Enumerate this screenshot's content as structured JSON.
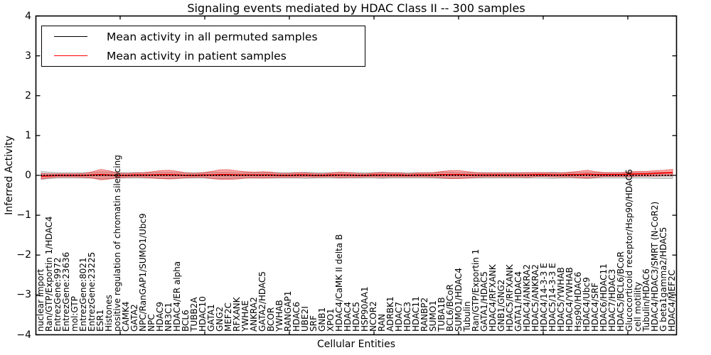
{
  "chart_data": {
    "type": "line",
    "title": "Signaling events mediated by HDAC Class II -- 300 samples",
    "xlabel": "Cellular Entities",
    "ylabel": "Inferred Activity",
    "ylim": [
      -4,
      4
    ],
    "yticks": [
      "4",
      "3",
      "2",
      "1",
      "0",
      "−1",
      "−2",
      "−3",
      "−4"
    ],
    "grid": false,
    "legend_position": "upper left",
    "categories": [
      "nuclear import",
      "Ran/GTP/Exportin 1/HDAC4",
      "EntrezGene:9972",
      "EntrezGene:23636",
      "mol:GTP",
      "EntrezGene:8021",
      "EntrezGene:23225",
      "ESR1",
      "Histones",
      "positive regulation of chromatin silencing",
      "CAMK4",
      "GATA2",
      "NPC/RanGAP1/SUMO1/Ubc9",
      "NPC",
      "HDAC9",
      "NR3C1",
      "HDAC4/ER alpha",
      "BCL6",
      "TUBB2A",
      "HDAC10",
      "GATA1",
      "GNG2",
      "MEF2C",
      "RFXANK",
      "YWHAE",
      "ANKRA2",
      "GATA2/HDAC5",
      "BCOR",
      "YWHAB",
      "RANGAP1",
      "HDAC6",
      "UBE2I",
      "SRF",
      "GNB1",
      "XPO1",
      "HDAC4/CaMK II delta B",
      "HDAC4",
      "HDAC5",
      "HSP90AA1",
      "NCOR2",
      "RAN",
      "ADRBK1",
      "HDAC7",
      "HDAC3",
      "HDAC11",
      "RANBP2",
      "SUMO1",
      "TUBA1B",
      "BCL6/BCoR",
      "SUMO1/HDAC4",
      "Tubulin",
      "Ran/GTP/Exportin 1",
      "GATA1/HDAC5",
      "HDAC4/RFXANK",
      "GNB1/GNG2",
      "HDAC5/RFXANK",
      "GATA1/HDAC4",
      "HDAC4/ANKRA2",
      "HDAC5/ANKRA2",
      "HDAC4/14-3-3 E",
      "HDAC5/14-3-3 E",
      "HDAC5/YWHAB",
      "HDAC4/YWHAB",
      "Hsp90/HDAC6",
      "HDAC4/Ubc9",
      "HDAC4/SRF",
      "HDAC6/HDAC11",
      "HDAC7/HDAC3",
      "HDAC5/BCL6/BCoR",
      "Glucocorticoid receptor/Hsp90/HDAC6",
      "cell motility",
      "Tubulin/HDAC6",
      "HDAC4/HDAC3/SMRT (N-CoR2)",
      "G beta1gamma2/HDAC5",
      "HDAC4/MEF2C"
    ],
    "series": [
      {
        "name": "Mean activity in all permuted samples",
        "color": "#000000",
        "line_style": "dotted",
        "values": [
          0,
          0,
          0,
          0,
          0,
          0,
          0,
          0,
          0,
          0,
          0,
          0,
          0,
          0,
          0,
          0,
          0,
          0,
          0,
          0,
          0,
          0,
          0,
          0,
          0,
          0,
          0,
          0,
          0,
          0,
          0,
          0,
          0,
          0,
          0,
          0,
          0,
          0,
          0,
          0,
          0,
          0,
          0,
          0,
          0,
          0,
          0,
          0,
          0,
          0,
          0,
          0,
          0,
          0,
          0,
          0,
          0,
          0,
          0,
          0,
          0,
          0,
          0,
          0,
          0,
          0,
          0,
          0,
          0,
          0,
          0,
          0,
          0,
          0,
          0
        ],
        "band_halfwidth": [
          0.1,
          0.08,
          0.07,
          0.07,
          0.07,
          0.07,
          0.07,
          0.09,
          0.08,
          0.07,
          0.07,
          0.07,
          0.07,
          0.07,
          0.08,
          0.08,
          0.07,
          0.07,
          0.07,
          0.07,
          0.08,
          0.08,
          0.08,
          0.07,
          0.07,
          0.07,
          0.07,
          0.07,
          0.07,
          0.07,
          0.07,
          0.08,
          0.07,
          0.07,
          0.07,
          0.07,
          0.07,
          0.07,
          0.07,
          0.07,
          0.08,
          0.07,
          0.07,
          0.07,
          0.07,
          0.07,
          0.07,
          0.08,
          0.08,
          0.07,
          0.07,
          0.07,
          0.07,
          0.07,
          0.07,
          0.07,
          0.07,
          0.07,
          0.07,
          0.07,
          0.08,
          0.07,
          0.07,
          0.07,
          0.08,
          0.07,
          0.07,
          0.07,
          0.07,
          0.07,
          0.07,
          0.07,
          0.08,
          0.08,
          0.08
        ],
        "band_fill": "rgba(125,125,125,0.28)",
        "band_edge": "rgba(110,110,110,0.45)"
      },
      {
        "name": "Mean activity in patient samples",
        "color": "#ff0000",
        "line_style": "solid",
        "values": [
          -0.02,
          -0.01,
          0,
          0,
          0,
          0,
          0.01,
          0.02,
          0.01,
          0,
          0,
          0.01,
          0.01,
          0.01,
          0.02,
          0.02,
          0.01,
          0,
          0,
          0.01,
          0.01,
          0.02,
          0.02,
          0.01,
          0.01,
          0.01,
          0.01,
          0.01,
          0,
          0,
          0.01,
          0.01,
          0,
          0,
          0.01,
          0.01,
          0.01,
          0,
          0,
          0.01,
          0.01,
          0.01,
          0.01,
          0,
          0.01,
          0.01,
          0.01,
          0.02,
          0.02,
          0.02,
          0.01,
          0.01,
          0.01,
          0.01,
          0.01,
          0.01,
          0.01,
          0.01,
          0.02,
          0.02,
          0.01,
          0.01,
          0.02,
          0.02,
          0.03,
          0.02,
          0.02,
          0.02,
          0.02,
          0.03,
          0.04,
          0.04,
          0.05,
          0.06,
          0.07
        ],
        "band_halfwidth": [
          0.07,
          0.05,
          0.04,
          0.04,
          0.04,
          0.05,
          0.08,
          0.13,
          0.1,
          0.06,
          0.05,
          0.05,
          0.06,
          0.08,
          0.1,
          0.11,
          0.09,
          0.06,
          0.05,
          0.06,
          0.09,
          0.12,
          0.12,
          0.1,
          0.08,
          0.07,
          0.08,
          0.07,
          0.05,
          0.05,
          0.06,
          0.05,
          0.05,
          0.04,
          0.05,
          0.07,
          0.06,
          0.05,
          0.04,
          0.05,
          0.06,
          0.05,
          0.05,
          0.04,
          0.05,
          0.05,
          0.06,
          0.08,
          0.1,
          0.1,
          0.08,
          0.06,
          0.05,
          0.05,
          0.05,
          0.05,
          0.05,
          0.06,
          0.05,
          0.05,
          0.05,
          0.05,
          0.06,
          0.08,
          0.1,
          0.07,
          0.05,
          0.05,
          0.05,
          0.06,
          0.06,
          0.06,
          0.07,
          0.07,
          0.08
        ],
        "band_fill": "rgba(255,0,0,0.32)",
        "band_edge": "rgba(215,30,30,0.55)"
      }
    ]
  },
  "legend": {
    "entries": [
      {
        "label": "Mean activity in all permuted samples",
        "color": "#000000"
      },
      {
        "label": "Mean activity in patient samples",
        "color": "#ff0000"
      }
    ]
  }
}
